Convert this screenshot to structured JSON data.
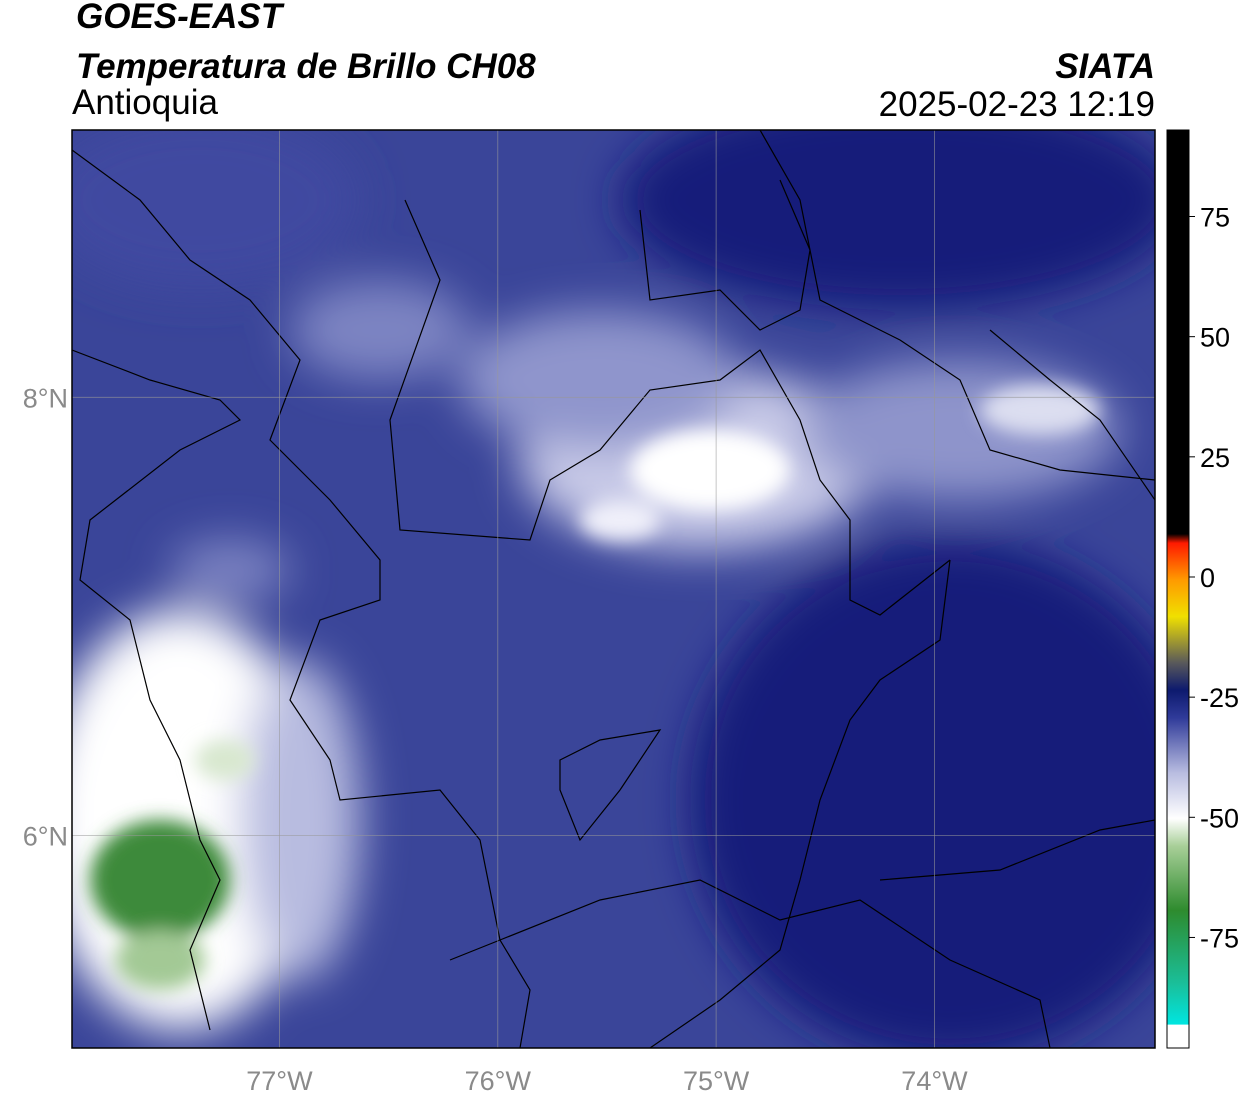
{
  "header": {
    "title": "GOES-EAST",
    "subtitle": "Temperatura de Brillo CH08",
    "region": "Antioquia",
    "source": "SIATA",
    "timestamp": "2025-02-23 12:19"
  },
  "map": {
    "xlim": [
      -77.95,
      -72.99
    ],
    "ylim": [
      5.03,
      9.22
    ],
    "xticks": [
      {
        "value": -77,
        "label": "77°W"
      },
      {
        "value": -76,
        "label": "76°W"
      },
      {
        "value": -75,
        "label": "75°W"
      },
      {
        "value": -74,
        "label": "74°W"
      }
    ],
    "yticks": [
      {
        "value": 6,
        "label": "6°N"
      },
      {
        "value": 8,
        "label": "8°N"
      }
    ],
    "grid": true
  },
  "colorbar": {
    "lim": [
      -98,
      93
    ],
    "ticks": [
      75,
      50,
      25,
      0,
      -25,
      -50,
      -75
    ]
  }
}
